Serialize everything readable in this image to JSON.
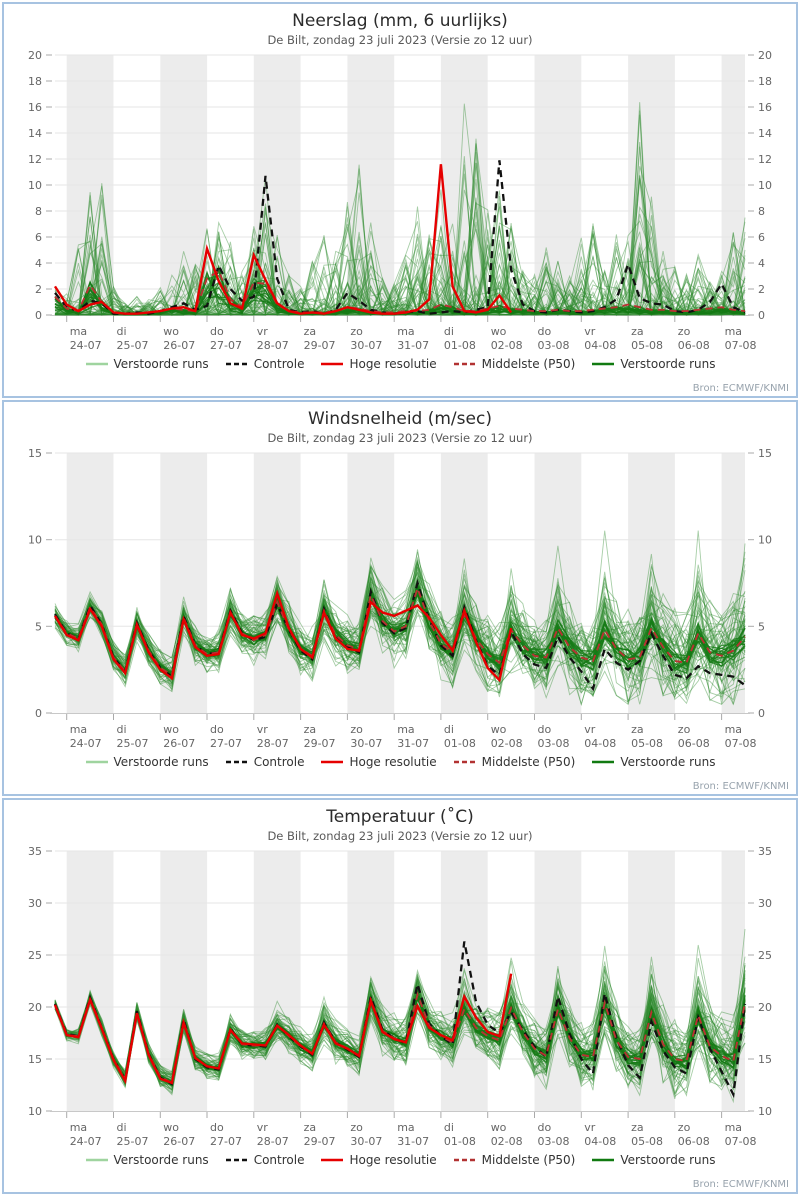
{
  "subtitle": "De Bilt, zondag 23 juli 2023 (Versie zo 12 uur)",
  "source_note": "Bron: ECMWF/KNMI",
  "legend": [
    {
      "label": "Verstoorde runs",
      "color": "#9fd49f",
      "dash": ""
    },
    {
      "label": "Controle",
      "color": "#111111",
      "dash": "5 3"
    },
    {
      "label": "Hoge resolutie",
      "color": "#e60000",
      "dash": ""
    },
    {
      "label": "Middelste (P50)",
      "color": "#b23232",
      "dash": "5 3"
    },
    {
      "label": "Verstoorde runs",
      "color": "#117a11",
      "dash": ""
    }
  ],
  "x_axis": {
    "start": "zo 23-07 18:00",
    "step_hours": 6,
    "days": [
      {
        "day": "ma",
        "date": "24-07"
      },
      {
        "day": "di",
        "date": "25-07"
      },
      {
        "day": "wo",
        "date": "26-07"
      },
      {
        "day": "do",
        "date": "27-07"
      },
      {
        "day": "vr",
        "date": "28-07"
      },
      {
        "day": "za",
        "date": "29-07"
      },
      {
        "day": "zo",
        "date": "30-07"
      },
      {
        "day": "ma",
        "date": "31-07"
      },
      {
        "day": "di",
        "date": "01-08"
      },
      {
        "day": "wo",
        "date": "02-08"
      },
      {
        "day": "do",
        "date": "03-08"
      },
      {
        "day": "vr",
        "date": "04-08"
      },
      {
        "day": "za",
        "date": "05-08"
      },
      {
        "day": "zo",
        "date": "06-08"
      },
      {
        "day": "ma",
        "date": "07-08"
      }
    ]
  },
  "colors": {
    "band": "#ececec",
    "grid": "#e6e6e6",
    "axis_line": "#c8c8c8",
    "tick": "#aaaaaa",
    "axis_text": "#666666",
    "controle": "#111111",
    "hoge_resolutie": "#e60000",
    "middelste": "#b83232",
    "ensemble_light": "#2e8b2e",
    "ensemble_dark": "#157a15"
  },
  "chart_data": [
    {
      "type": "line",
      "title": "Neerslag (mm, 6 uurlijks)",
      "ylim": [
        0,
        20
      ],
      "yticks": [
        0,
        2,
        4,
        6,
        8,
        10,
        12,
        14,
        16,
        18,
        20
      ],
      "seed": 11,
      "series": {
        "controle": [
          1.7,
          0.6,
          0.3,
          1.1,
          0.9,
          0.1,
          0.1,
          0.2,
          0.1,
          0.3,
          0.6,
          0.9,
          0.4,
          0.7,
          3.8,
          2.0,
          1.1,
          1.4,
          10.7,
          2.8,
          0.4,
          0.2,
          0.3,
          0.1,
          0.4,
          1.7,
          1.1,
          0.4,
          0.2,
          0.1,
          0.2,
          0.3,
          0.1,
          0.2,
          0.3,
          0.2,
          0.4,
          0.6,
          11.9,
          3.5,
          0.8,
          0.3,
          0.2,
          0.4,
          0.3,
          0.2,
          0.3,
          0.6,
          1.2,
          3.9,
          1.3,
          0.9,
          0.8,
          0.3,
          0.2,
          0.4,
          1.0,
          2.4,
          0.6,
          0.2
        ],
        "hoge_resolutie": [
          2.2,
          0.8,
          0.3,
          0.8,
          1.0,
          0.2,
          0.1,
          0.1,
          0.2,
          0.3,
          0.5,
          0.6,
          0.3,
          5.1,
          2.6,
          0.9,
          0.5,
          4.6,
          2.7,
          0.9,
          0.3,
          0.1,
          0.2,
          0.1,
          0.3,
          0.6,
          0.4,
          0.2,
          0.1,
          0.1,
          0.2,
          0.4,
          1.2,
          11.6,
          2.2,
          0.3,
          0.2,
          0.4,
          1.5,
          0.2
        ],
        "middelste_p50": [
          1.4,
          0.5,
          0.3,
          2.3,
          1.0,
          0.2,
          0.1,
          0.1,
          0.2,
          0.3,
          0.5,
          0.4,
          0.3,
          2.8,
          3.4,
          1.2,
          0.6,
          2.5,
          2.4,
          0.8,
          0.3,
          0.2,
          0.2,
          0.2,
          0.3,
          0.6,
          0.5,
          0.3,
          0.2,
          0.2,
          0.3,
          0.3,
          0.4,
          0.8,
          0.6,
          0.3,
          0.3,
          0.5,
          0.7,
          0.5,
          0.4,
          0.3,
          0.3,
          0.4,
          0.3,
          0.3,
          0.4,
          0.5,
          0.6,
          0.8,
          0.6,
          0.4,
          0.4,
          0.3,
          0.3,
          0.4,
          0.5,
          0.6,
          0.4,
          0.3
        ]
      },
      "ensemble": {
        "style": "spikes",
        "count": 52,
        "max": [
          2.6,
          1.8,
          6.0,
          9.5,
          11.8,
          2.2,
          0.9,
          1.6,
          1.2,
          2.2,
          3.2,
          5.6,
          4.2,
          8.0,
          8.5,
          6.0,
          4.2,
          8.2,
          11.2,
          7.0,
          3.2,
          2.2,
          4.2,
          6.2,
          5.2,
          9.0,
          12.8,
          7.2,
          3.2,
          2.6,
          5.2,
          9.2,
          6.2,
          11.5,
          8.2,
          19.0,
          15.6,
          8.2,
          10.0,
          7.2,
          4.2,
          3.2,
          5.2,
          4.2,
          3.2,
          6.2,
          7.2,
          4.2,
          6.2,
          6.5,
          17.1,
          9.2,
          5.2,
          4.2,
          3.2,
          5.2,
          2.6,
          4.2,
          7.2,
          8.8
        ]
      }
    },
    {
      "type": "line",
      "title": "Windsnelheid (m/sec)",
      "ylim": [
        0,
        15
      ],
      "yticks": [
        0,
        5,
        10,
        15
      ],
      "seed": 22,
      "series": {
        "controle": [
          5.7,
          4.6,
          4.3,
          6.2,
          5.1,
          3.2,
          2.4,
          5.2,
          3.6,
          2.6,
          2.1,
          5.6,
          3.9,
          3.4,
          3.5,
          5.9,
          4.6,
          4.2,
          4.4,
          6.3,
          4.8,
          3.6,
          3.1,
          6.0,
          4.4,
          3.8,
          3.5,
          7.0,
          5.2,
          4.6,
          4.9,
          7.5,
          5.4,
          3.9,
          3.3,
          6.1,
          4.2,
          2.7,
          2.2,
          4.7,
          3.4,
          2.8,
          2.6,
          4.4,
          3.2,
          2.4,
          1.4,
          3.7,
          2.9,
          2.5,
          3.0,
          4.6,
          3.3,
          2.2,
          2.0,
          2.7,
          2.3,
          2.2,
          2.1,
          1.6
        ],
        "hoge_resolutie": [
          5.6,
          4.5,
          4.2,
          6.0,
          5.0,
          3.1,
          2.3,
          5.1,
          3.5,
          2.5,
          2.0,
          5.4,
          3.8,
          3.3,
          3.4,
          5.8,
          4.5,
          4.3,
          4.6,
          6.9,
          4.9,
          3.7,
          3.2,
          5.8,
          4.3,
          3.7,
          3.6,
          6.4,
          5.8,
          5.6,
          5.9,
          6.2,
          5.5,
          4.5,
          3.6,
          5.9,
          4.1,
          2.6,
          1.9,
          4.9
        ],
        "middelste_p50": [
          5.6,
          4.6,
          4.3,
          6.1,
          5.1,
          3.2,
          2.4,
          5.1,
          3.6,
          2.6,
          2.2,
          5.5,
          3.9,
          3.4,
          3.5,
          5.8,
          4.6,
          4.2,
          4.5,
          6.4,
          4.8,
          3.7,
          3.3,
          5.9,
          4.5,
          3.9,
          3.7,
          6.8,
          5.3,
          4.7,
          5.0,
          7.2,
          5.3,
          4.0,
          3.5,
          5.7,
          4.3,
          3.4,
          2.9,
          4.8,
          3.9,
          3.3,
          3.2,
          4.9,
          3.8,
          3.2,
          3.0,
          4.8,
          3.7,
          3.1,
          3.2,
          4.9,
          3.8,
          3.0,
          2.9,
          4.6,
          3.5,
          3.3,
          3.6,
          4.4
        ]
      },
      "ensemble": {
        "style": "band",
        "count": 52,
        "spread_start": 0.5,
        "spread_end": 2.4,
        "peak_boost": 6,
        "floor": 0.5
      }
    },
    {
      "type": "line",
      "title": "Temperatuur (˚C)",
      "ylim": [
        10,
        35
      ],
      "yticks": [
        10,
        15,
        20,
        25,
        30,
        35
      ],
      "seed": 33,
      "series": {
        "controle": [
          20.3,
          17.4,
          17.2,
          20.9,
          18.0,
          15.0,
          13.0,
          19.6,
          15.5,
          13.2,
          12.6,
          18.8,
          15.0,
          14.2,
          14.0,
          17.9,
          16.4,
          16.3,
          16.2,
          18.3,
          17.2,
          16.2,
          15.4,
          18.5,
          16.6,
          15.9,
          15.2,
          21.0,
          17.8,
          17.0,
          16.5,
          22.2,
          18.4,
          17.2,
          16.4,
          26.3,
          20.5,
          18.3,
          17.5,
          19.5,
          17.8,
          16.2,
          15.2,
          21.0,
          17.4,
          15.0,
          13.6,
          21.3,
          17.0,
          14.4,
          13.2,
          18.6,
          15.8,
          14.2,
          13.6,
          19.0,
          16.0,
          13.8,
          11.6,
          20.3
        ],
        "hoge_resolutie": [
          20.2,
          17.3,
          17.1,
          20.7,
          17.9,
          14.9,
          12.9,
          19.4,
          15.4,
          13.1,
          12.7,
          18.5,
          15.1,
          14.3,
          14.1,
          17.8,
          16.5,
          16.4,
          16.3,
          18.2,
          17.3,
          16.3,
          15.5,
          18.3,
          16.5,
          16.0,
          15.3,
          20.6,
          17.6,
          16.9,
          16.6,
          20.1,
          18.0,
          17.3,
          16.8,
          21.0,
          19.0,
          17.6,
          17.2,
          23.2
        ],
        "middelste_p50": [
          20.2,
          17.3,
          17.2,
          20.8,
          18.0,
          15.0,
          13.1,
          19.5,
          15.5,
          13.3,
          12.7,
          18.6,
          15.1,
          14.3,
          14.1,
          17.8,
          16.4,
          16.3,
          16.3,
          18.2,
          17.2,
          16.2,
          15.5,
          18.4,
          16.6,
          16.0,
          15.3,
          20.7,
          17.7,
          17.0,
          16.6,
          21.2,
          18.2,
          17.2,
          16.6,
          19.8,
          18.0,
          17.2,
          16.8,
          19.9,
          17.6,
          16.0,
          15.3,
          19.8,
          17.0,
          15.4,
          15.2,
          20.4,
          16.8,
          15.2,
          15.0,
          19.5,
          16.4,
          15.0,
          14.8,
          19.2,
          16.2,
          15.3,
          14.8,
          20.4
        ]
      },
      "ensemble": {
        "style": "band",
        "count": 52,
        "spread_start": 0.4,
        "spread_end": 3.0,
        "peak_boost": 8,
        "floor": null
      }
    }
  ]
}
